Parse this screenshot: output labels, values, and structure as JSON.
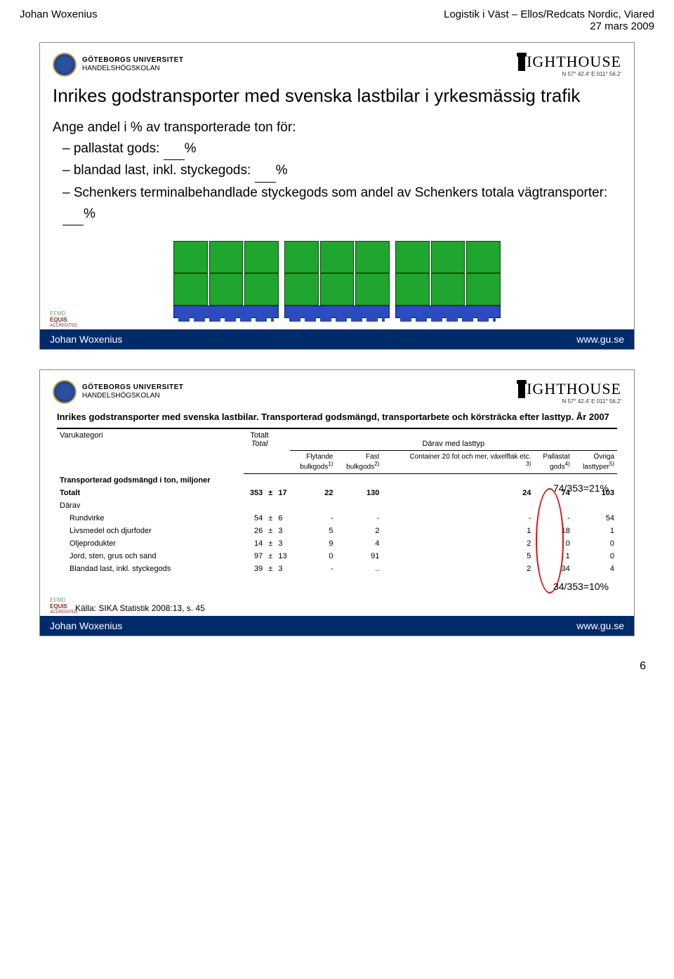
{
  "header": {
    "author": "Johan Woxenius",
    "event_line1": "Logistik i Väst – Ellos/Redcats Nordic, Viared",
    "event_line2": "27 mars  2009"
  },
  "uni": {
    "line1": "GÖTEBORGS UNIVERSITET",
    "line2": "HANDELSHÖGSKOLAN"
  },
  "lighthouse": {
    "word": "IGHTHOUSE",
    "coord": "N 57° 42.4'  E 011° 56.2'"
  },
  "slide1": {
    "title": "Inrikes godstransporter med svenska lastbilar i yrkesmässig trafik",
    "intro": "Ange andel i % av transporterade ton för:",
    "items": [
      {
        "label_pre": "pallastat gods:",
        "suffix": "%"
      },
      {
        "label_pre": "blandad last, inkl. styckegods:",
        "suffix": "%"
      },
      {
        "label_pre": "Schenkers terminalbehandlade styckegods som andel av Schenkers totala vägtransporter:",
        "suffix": "%"
      }
    ]
  },
  "footer": {
    "left": "Johan Woxenius",
    "right": "www.gu.se"
  },
  "slide2": {
    "table_title": "Inrikes godstransporter med svenska lastbilar. Transporterad godsmängd, transportarbete och körsträcka efter lasttyp. År 2007",
    "top_left_heading": "Varukategori",
    "total_label": "Totalt",
    "total_italic": "Total",
    "lasttype_heading": "Därav med lasttyp",
    "cols": [
      {
        "l1": "Flytande",
        "l2": "bulkgods",
        "sup": "1)"
      },
      {
        "l1": "Fast",
        "l2": "bulkgods",
        "sup": "2)"
      },
      {
        "l1": "Container 20 fot och mer, växelflak etc.",
        "l2": "",
        "sup": "3)"
      },
      {
        "l1": "Pallastat",
        "l2": "gods",
        "sup": "4)"
      },
      {
        "l1": "Övriga",
        "l2": "lasttyper",
        "sup": "5)"
      }
    ],
    "section": "Transporterad godsmängd i ton, miljoner",
    "rows": [
      {
        "label": "Totalt",
        "total": "353",
        "pm": "±",
        "c": [
          "17",
          "22",
          "130",
          "24",
          "74",
          "103"
        ],
        "bold": true
      },
      {
        "label": "Därav",
        "total": "",
        "pm": "",
        "c": [
          "",
          "",
          "",
          "",
          "",
          ""
        ]
      },
      {
        "label": "Rundvirke",
        "indent": true,
        "total": "54",
        "pm": "±",
        "c": [
          "6",
          "-",
          "-",
          "-",
          "-",
          "54"
        ]
      },
      {
        "label": "Livsmedel och djurfoder",
        "indent": true,
        "total": "26",
        "pm": "±",
        "c": [
          "3",
          "5",
          "2",
          "1",
          "18",
          "1"
        ]
      },
      {
        "label": "Oljeprodukter",
        "indent": true,
        "total": "14",
        "pm": "±",
        "c": [
          "3",
          "9",
          "4",
          "2",
          "0",
          "0"
        ]
      },
      {
        "label": "Jord, sten, grus och sand",
        "indent": true,
        "total": "97",
        "pm": "±",
        "c": [
          "13",
          "0",
          "91",
          "5",
          "1",
          "0"
        ]
      },
      {
        "label": "Blandad last, inkl. styckegods",
        "indent": true,
        "total": "39",
        "pm": "±",
        "c": [
          "3",
          "-",
          "..",
          "2",
          "34",
          "4"
        ]
      }
    ],
    "annot1": "74/353=21%",
    "annot2": "34/353=10%",
    "source": "Källa: SIKA Statistik 2008:13, s. 45"
  },
  "colors": {
    "footer_bg": "#002b6b",
    "pallet_green": "#1fa62e",
    "pallet_blue": "#2a4cc0",
    "red": "#d11a1a"
  },
  "page_number": "6"
}
